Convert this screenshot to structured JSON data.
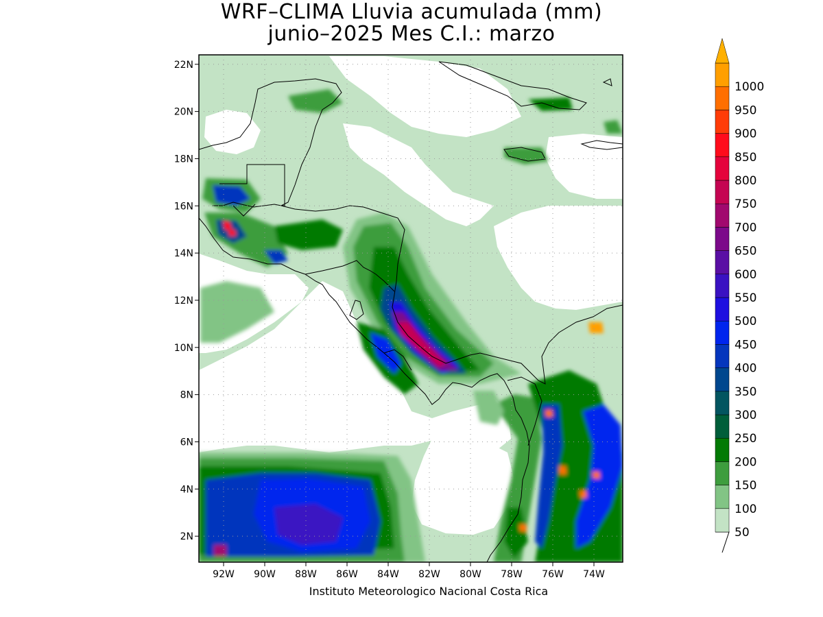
{
  "title": {
    "line1": "WRF–CLIMA Lluvia acumulada (mm)",
    "line2": "junio–2025 Mes C.I.: marzo"
  },
  "credit": "Instituto Meteorologico Nacional Costa Rica",
  "axes": {
    "lon_range": [
      -93.2,
      -72.6
    ],
    "lat_range": [
      0.9,
      22.4
    ],
    "x_ticks": [
      {
        "value": -92,
        "label": "92W"
      },
      {
        "value": -90,
        "label": "90W"
      },
      {
        "value": -88,
        "label": "88W"
      },
      {
        "value": -86,
        "label": "86W"
      },
      {
        "value": -84,
        "label": "84W"
      },
      {
        "value": -82,
        "label": "82W"
      },
      {
        "value": -80,
        "label": "80W"
      },
      {
        "value": -78,
        "label": "78W"
      },
      {
        "value": -76,
        "label": "76W"
      },
      {
        "value": -74,
        "label": "74W"
      }
    ],
    "y_ticks": [
      {
        "value": 2,
        "label": "2N"
      },
      {
        "value": 4,
        "label": "4N"
      },
      {
        "value": 6,
        "label": "6N"
      },
      {
        "value": 8,
        "label": "8N"
      },
      {
        "value": 10,
        "label": "10N"
      },
      {
        "value": 12,
        "label": "12N"
      },
      {
        "value": 14,
        "label": "14N"
      },
      {
        "value": 16,
        "label": "16N"
      },
      {
        "value": 18,
        "label": "18N"
      },
      {
        "value": 20,
        "label": "20N"
      },
      {
        "value": 22,
        "label": "22N"
      }
    ],
    "grid": "dotted"
  },
  "colorbar": {
    "levels": [
      {
        "label": "50",
        "color": "#c3e3c5"
      },
      {
        "label": "100",
        "color": "#82c485"
      },
      {
        "label": "150",
        "color": "#3e9d3e"
      },
      {
        "label": "200",
        "color": "#037a05"
      },
      {
        "label": "250",
        "color": "#005e3a"
      },
      {
        "label": "300",
        "color": "#035560"
      },
      {
        "label": "350",
        "color": "#00478e"
      },
      {
        "label": "400",
        "color": "#0536bd"
      },
      {
        "label": "450",
        "color": "#0025ee"
      },
      {
        "label": "500",
        "color": "#1e10e0"
      },
      {
        "label": "550",
        "color": "#3a12c2"
      },
      {
        "label": "600",
        "color": "#5a0fa4"
      },
      {
        "label": "650",
        "color": "#7c0a8a"
      },
      {
        "label": "700",
        "color": "#a1096e"
      },
      {
        "label": "750",
        "color": "#c50552"
      },
      {
        "label": "800",
        "color": "#e5033c"
      },
      {
        "label": "850",
        "color": "#ff0c1c"
      },
      {
        "label": "900",
        "color": "#ff3c08"
      },
      {
        "label": "950",
        "color": "#ff6f00"
      },
      {
        "label": "1000",
        "color": "#ff9f00"
      }
    ],
    "over_color": "#ffb000"
  },
  "map": {
    "background_color": "#c3e3c5",
    "dry_color": "#ffffff"
  }
}
